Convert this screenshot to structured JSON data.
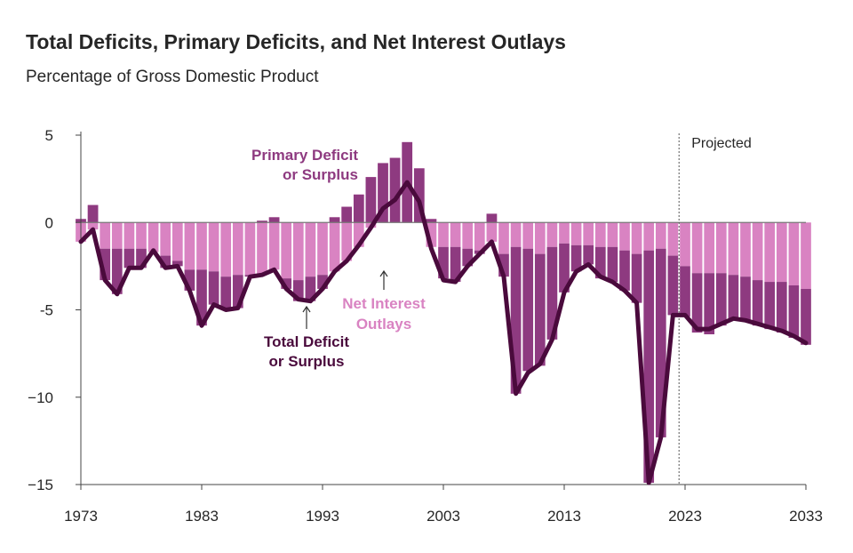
{
  "chart_data": {
    "type": "bar",
    "title": "Total Deficits, Primary Deficits, and Net Interest Outlays",
    "subtitle": "Percentage of Gross Domestic Product",
    "ylim": [
      -15,
      5
    ],
    "y_ticks": [
      "5",
      "0",
      "-5",
      "−10",
      "−15"
    ],
    "y_tick_values": [
      5,
      0,
      -5,
      -10,
      -15
    ],
    "x_ticks": [
      "1973",
      "1983",
      "1993",
      "2003",
      "2013",
      "2023",
      "2033"
    ],
    "x_tick_values": [
      1973,
      1983,
      1993,
      2003,
      2013,
      2023,
      2033
    ],
    "projection_start": 2023,
    "projection_label": "Projected",
    "annotations": {
      "primary_line1": "Primary Deficit",
      "primary_line2": "or Surplus",
      "interest_line1": "Net Interest",
      "interest_line2": "Outlays",
      "total_line1": "Total Deficit",
      "total_line2": "or Surplus"
    },
    "colors": {
      "primary": "#8e3a80",
      "interest": "#d983c2",
      "total": "#4a0a3c",
      "axis": "#444444",
      "title": "#262626",
      "projected_line": "#555555"
    },
    "years": [
      1973,
      1974,
      1975,
      1976,
      1977,
      1978,
      1979,
      1980,
      1981,
      1982,
      1983,
      1984,
      1985,
      1986,
      1987,
      1988,
      1989,
      1990,
      1991,
      1992,
      1993,
      1994,
      1995,
      1996,
      1997,
      1998,
      1999,
      2000,
      2001,
      2002,
      2003,
      2004,
      2005,
      2006,
      2007,
      2008,
      2009,
      2010,
      2011,
      2012,
      2013,
      2014,
      2015,
      2016,
      2017,
      2018,
      2019,
      2020,
      2021,
      2022,
      2023,
      2024,
      2025,
      2026,
      2027,
      2028,
      2029,
      2030,
      2031,
      2032,
      2033
    ],
    "series": [
      {
        "name": "Total Deficit or Surplus",
        "values": [
          -1.1,
          -0.4,
          -3.3,
          -4.1,
          -2.6,
          -2.6,
          -1.6,
          -2.6,
          -2.5,
          -3.9,
          -5.9,
          -4.7,
          -5.0,
          -4.9,
          -3.1,
          -3.0,
          -2.7,
          -3.8,
          -4.4,
          -4.5,
          -3.8,
          -2.8,
          -2.2,
          -1.3,
          -0.3,
          0.8,
          1.3,
          2.3,
          1.2,
          -1.5,
          -3.3,
          -3.4,
          -2.5,
          -1.8,
          -1.1,
          -3.1,
          -9.8,
          -8.6,
          -8.1,
          -6.7,
          -4.0,
          -2.8,
          -2.4,
          -3.1,
          -3.4,
          -3.9,
          -4.6,
          -14.9,
          -12.3,
          -5.3,
          -5.3,
          -6.1,
          -6.1,
          -5.8,
          -5.5,
          -5.6,
          -5.8,
          -6.0,
          -6.2,
          -6.5,
          -6.9
        ]
      },
      {
        "name": "Primary Deficit or Surplus",
        "values": [
          0.2,
          1.0,
          -1.8,
          -2.6,
          -1.1,
          -1.1,
          0.0,
          -0.7,
          -0.3,
          -1.2,
          -3.2,
          -1.9,
          -1.9,
          -1.9,
          -0.1,
          0.1,
          0.3,
          -0.6,
          -1.2,
          -1.4,
          -0.8,
          0.3,
          0.9,
          1.6,
          2.6,
          3.4,
          3.7,
          4.6,
          3.1,
          0.2,
          -1.8,
          -2.0,
          -1.0,
          -0.2,
          0.5,
          -1.3,
          -8.4,
          -7.0,
          -6.4,
          -5.3,
          -2.8,
          -1.5,
          -1.1,
          -1.8,
          -2.0,
          -2.3,
          -2.8,
          -13.3,
          -10.8,
          -3.4,
          -2.9,
          -3.4,
          -3.5,
          -3.0,
          -2.5,
          -2.5,
          -2.6,
          -2.7,
          -2.9,
          -3.0,
          -3.2
        ]
      },
      {
        "name": "Net Interest Outlays",
        "values": [
          -1.3,
          -1.4,
          -1.5,
          -1.5,
          -1.5,
          -1.5,
          -1.7,
          -1.9,
          -2.2,
          -2.7,
          -2.7,
          -2.8,
          -3.1,
          -3.0,
          -3.0,
          -3.1,
          -3.0,
          -3.2,
          -3.3,
          -3.1,
          -3.0,
          -3.1,
          -3.1,
          -3.0,
          -2.9,
          -2.6,
          -2.4,
          -2.2,
          -1.9,
          -1.6,
          -1.4,
          -1.4,
          -1.5,
          -1.6,
          -1.6,
          -1.8,
          -1.4,
          -1.5,
          -1.8,
          -1.4,
          -1.2,
          -1.3,
          -1.3,
          -1.4,
          -1.4,
          -1.6,
          -1.8,
          -1.6,
          -1.5,
          -1.9,
          -2.5,
          -2.9,
          -2.9,
          -2.9,
          -3.0,
          -3.1,
          -3.3,
          -3.4,
          -3.4,
          -3.6,
          -3.8
        ]
      }
    ]
  }
}
